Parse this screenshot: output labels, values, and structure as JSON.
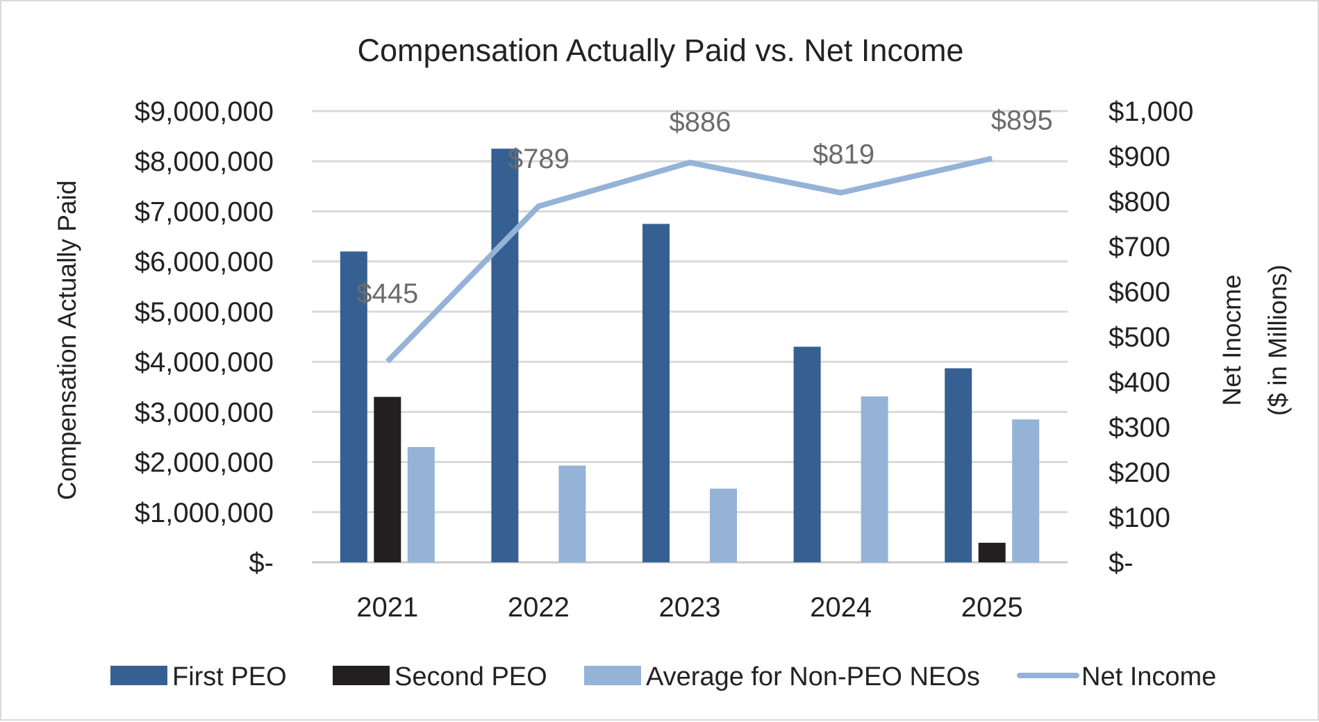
{
  "chart_data": {
    "type": "bar",
    "title": "Compensation Actually Paid vs. Net Income",
    "categories": [
      "2021",
      "2022",
      "2023",
      "2024",
      "2025"
    ],
    "ylabel": "Compensation Actually Paid",
    "y2label_line1": "Net Inocme",
    "y2label_line2": "($ in Millions)",
    "ylim": [
      0,
      9000000
    ],
    "y2lim": [
      0,
      1000
    ],
    "y_ticks": [
      "$-",
      "$1,000,000",
      "$2,000,000",
      "$3,000,000",
      "$4,000,000",
      "$5,000,000",
      "$6,000,000",
      "$7,000,000",
      "$8,000,000",
      "$9,000,000"
    ],
    "y2_ticks": [
      "$-",
      "$100",
      "$200",
      "$300",
      "$400",
      "$500",
      "$600",
      "$700",
      "$800",
      "$900",
      "$1,000"
    ],
    "grid": true,
    "legend_position": "bottom",
    "series": [
      {
        "name": "First PEO",
        "type": "bar",
        "axis": "left",
        "color": "#366092",
        "values": [
          6200000,
          8250000,
          6750000,
          4300000,
          3870000
        ]
      },
      {
        "name": "Second PEO",
        "type": "bar",
        "axis": "left",
        "color": "#231f20",
        "values": [
          3300000,
          null,
          null,
          null,
          390000
        ]
      },
      {
        "name": "Average for Non-PEO NEOs",
        "type": "bar",
        "axis": "left",
        "color": "#95b3d7",
        "values": [
          2300000,
          1930000,
          1470000,
          3310000,
          2850000
        ]
      },
      {
        "name": "Net Income",
        "type": "line",
        "axis": "right",
        "color": "#95b3d7",
        "values": [
          445,
          789,
          886,
          819,
          895
        ]
      }
    ],
    "data_labels": [
      "$445",
      "$789",
      "$886",
      "$819",
      "$895"
    ]
  }
}
